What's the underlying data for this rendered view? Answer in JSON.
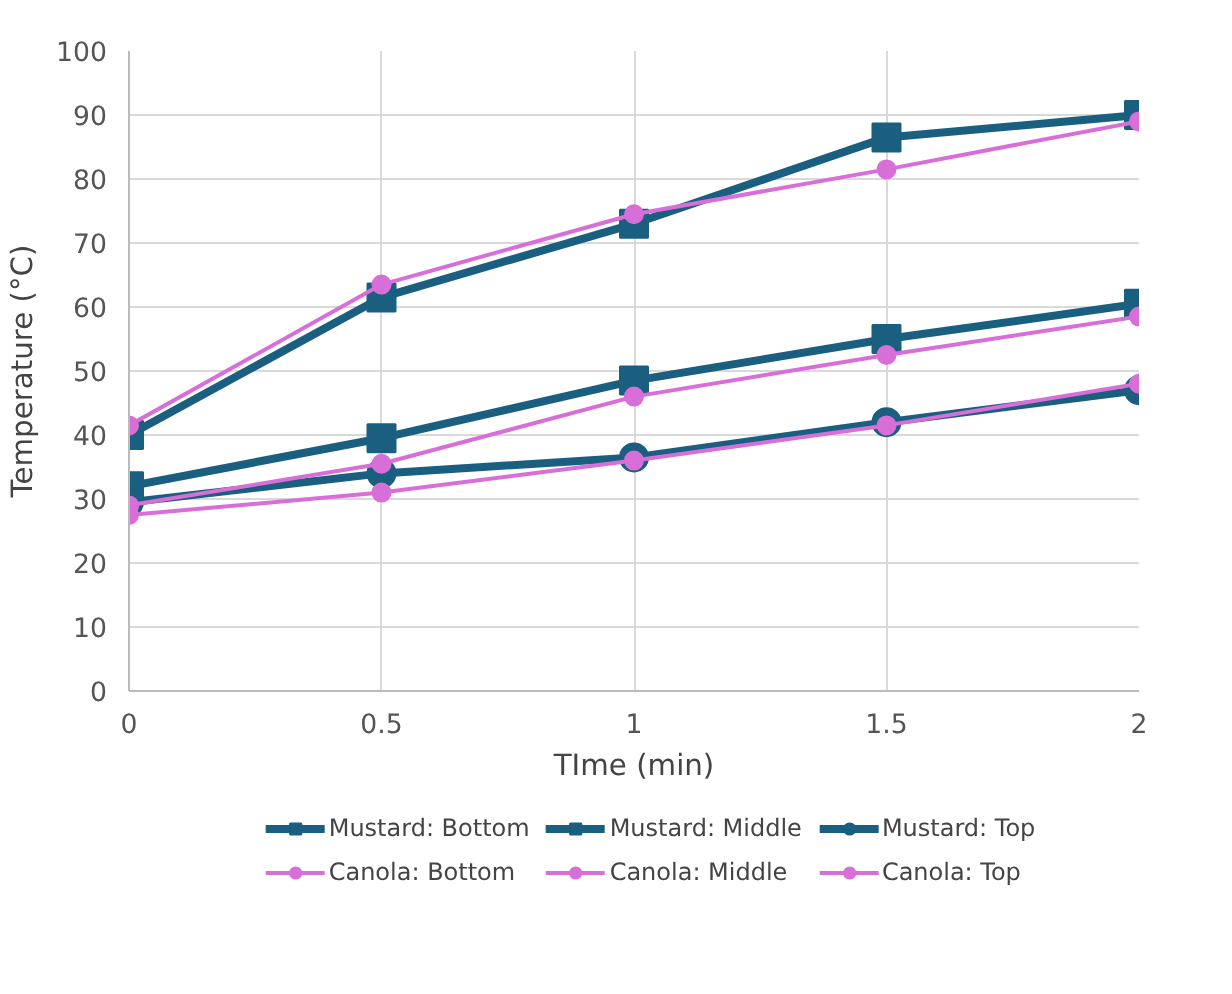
{
  "chart_data": {
    "type": "line",
    "xlabel": "TIme (min)",
    "ylabel": "Temperature (°C)",
    "x": [
      0,
      0.5,
      1,
      1.5,
      2
    ],
    "xlim": [
      0,
      2
    ],
    "xticks": [
      0,
      0.5,
      1,
      1.5,
      2
    ],
    "ylim": [
      0,
      100
    ],
    "yticks": [
      0,
      10,
      20,
      30,
      40,
      50,
      60,
      70,
      80,
      90,
      100
    ],
    "grid": true,
    "legend": "bottom",
    "series": [
      {
        "name": "Mustard: Bottom",
        "color": "#1a5e80",
        "marker": "square",
        "values": [
          40,
          61.5,
          73,
          86.5,
          90
        ]
      },
      {
        "name": "Mustard: Middle",
        "color": "#1a5e80",
        "marker": "square",
        "values": [
          32,
          39.5,
          48.5,
          55,
          60.5
        ]
      },
      {
        "name": "Mustard: Top",
        "color": "#1a5e80",
        "marker": "circle",
        "values": [
          29.5,
          34,
          36.5,
          42,
          47
        ]
      },
      {
        "name": "Canola: Bottom",
        "color": "#d86fd8",
        "marker": "circle",
        "values": [
          41.5,
          63.5,
          74.5,
          81.5,
          89
        ]
      },
      {
        "name": "Canola: Middle",
        "color": "#d86fd8",
        "marker": "circle",
        "values": [
          29,
          35.5,
          46,
          52.5,
          58.5
        ]
      },
      {
        "name": "Canola: Top",
        "color": "#d86fd8",
        "marker": "circle",
        "values": [
          27.5,
          31,
          36,
          41.5,
          48
        ]
      }
    ]
  }
}
